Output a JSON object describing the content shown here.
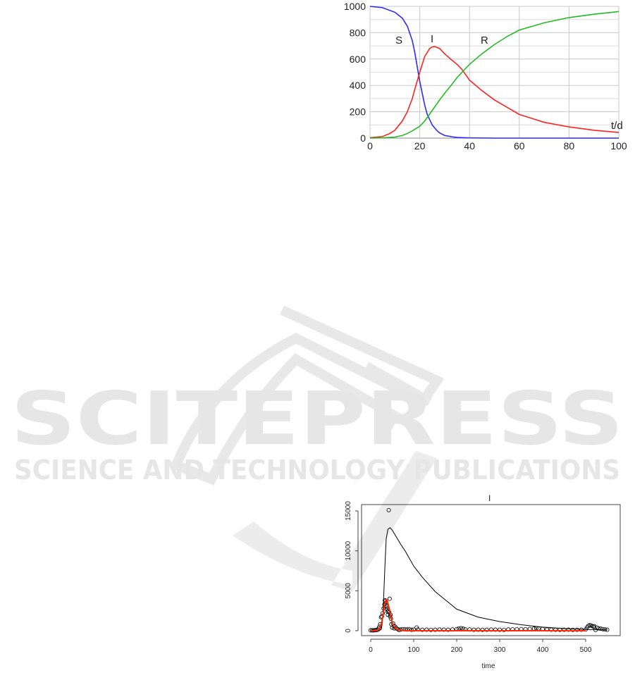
{
  "watermark": {
    "title": "SCITEPRESS",
    "subtitle": "SCIENCE AND TECHNOLOGY PUBLICATIONS"
  },
  "chart_data": [
    {
      "type": "line",
      "xlabel": "t/d",
      "ylabel": "",
      "xlim": [
        0,
        100
      ],
      "ylim": [
        0,
        1000
      ],
      "xticks": [
        "0",
        "20",
        "40",
        "60",
        "80",
        "100"
      ],
      "yticks": [
        "0",
        "200",
        "400",
        "600",
        "800",
        "1000"
      ],
      "grid": true,
      "series": [
        {
          "name": "S",
          "color": "#2a2aff",
          "x": [
            0,
            5,
            10,
            13,
            15,
            17,
            18,
            19,
            20,
            21,
            22,
            23,
            25,
            27,
            28,
            30,
            33,
            35,
            40,
            50,
            60,
            80,
            100
          ],
          "y": [
            1000,
            990,
            955,
            910,
            850,
            740,
            650,
            540,
            430,
            340,
            250,
            180,
            100,
            55,
            40,
            20,
            10,
            5,
            2,
            0,
            0,
            0,
            0
          ]
        },
        {
          "name": "I",
          "color": "#ff2020",
          "x": [
            0,
            5,
            8,
            10,
            13,
            15,
            17,
            18,
            20,
            22,
            24,
            25,
            26,
            28,
            30,
            33,
            35,
            37,
            40,
            45,
            50,
            55,
            60,
            70,
            80,
            90,
            100
          ],
          "y": [
            3,
            12,
            35,
            60,
            130,
            200,
            300,
            370,
            500,
            620,
            680,
            692,
            695,
            680,
            640,
            590,
            560,
            520,
            440,
            360,
            290,
            235,
            180,
            120,
            85,
            60,
            43
          ]
        },
        {
          "name": "R",
          "color": "#22bb22",
          "x": [
            0,
            5,
            10,
            13,
            15,
            17,
            20,
            22,
            25,
            28,
            30,
            33,
            35,
            38,
            40,
            45,
            50,
            55,
            60,
            70,
            80,
            90,
            100
          ],
          "y": [
            0,
            2,
            8,
            20,
            35,
            55,
            90,
            130,
            210,
            290,
            340,
            410,
            460,
            520,
            560,
            640,
            710,
            770,
            820,
            875,
            915,
            940,
            960
          ]
        }
      ]
    },
    {
      "type": "scatter",
      "title": "I",
      "xlabel": "time",
      "ylabel": "",
      "xlim": [
        0,
        550
      ],
      "ylim": [
        0,
        15000
      ],
      "xticks": [
        "0",
        "100",
        "200",
        "300",
        "400",
        "500"
      ],
      "yticks": [
        "0",
        "5000",
        "10000",
        "15000"
      ],
      "grid": false,
      "series": [
        {
          "kind": "points",
          "color": "#000000",
          "x": [
            0,
            3,
            6,
            9,
            12,
            15,
            18,
            20,
            22,
            24,
            26,
            28,
            30,
            32,
            33,
            34,
            35,
            36,
            37,
            38,
            39,
            40,
            41,
            42,
            43,
            44,
            45,
            46,
            47,
            48,
            50,
            52,
            54,
            55,
            57,
            60,
            63,
            66,
            70,
            75,
            80,
            85,
            90,
            95,
            100,
            107,
            110,
            120,
            130,
            140,
            150,
            160,
            170,
            180,
            190,
            200,
            205,
            210,
            215,
            220,
            230,
            240,
            250,
            260,
            270,
            280,
            290,
            300,
            310,
            320,
            330,
            340,
            350,
            360,
            370,
            380,
            385,
            390,
            400,
            410,
            420,
            430,
            440,
            450,
            460,
            470,
            480,
            490,
            500,
            503,
            506,
            509,
            512,
            515,
            518,
            520,
            523,
            526,
            530,
            535,
            540,
            545,
            550
          ],
          "y": [
            50,
            60,
            40,
            70,
            90,
            100,
            250,
            500,
            800,
            1700,
            1800,
            2200,
            2800,
            3300,
            3800,
            3700,
            3500,
            3200,
            3000,
            2700,
            2400,
            2000,
            2500,
            15100,
            2300,
            4000,
            1800,
            2000,
            1500,
            800,
            400,
            900,
            600,
            300,
            500,
            300,
            200,
            100,
            150,
            200,
            180,
            150,
            170,
            120,
            140,
            400,
            150,
            120,
            130,
            110,
            120,
            140,
            130,
            120,
            150,
            200,
            280,
            320,
            250,
            180,
            150,
            120,
            130,
            110,
            120,
            140,
            130,
            120,
            110,
            150,
            170,
            180,
            200,
            190,
            220,
            260,
            300,
            280,
            200,
            150,
            130,
            120,
            110,
            120,
            130,
            110,
            120,
            130,
            150,
            400,
            600,
            700,
            650,
            600,
            500,
            550,
            100,
            400,
            300,
            250,
            200,
            150,
            120
          ]
        },
        {
          "kind": "line",
          "color": "#000000",
          "x": [
            0,
            20,
            25,
            28,
            30,
            33,
            36,
            40,
            45,
            50,
            60,
            70,
            80,
            100,
            120,
            150,
            200,
            250,
            300,
            350,
            400,
            450,
            500,
            550
          ],
          "y": [
            0,
            0,
            200,
            1500,
            4000,
            8000,
            11500,
            12700,
            12900,
            12600,
            11700,
            10800,
            10000,
            8100,
            6700,
            4900,
            2700,
            1700,
            1150,
            750,
            450,
            280,
            150,
            100
          ]
        },
        {
          "kind": "line",
          "color": "#ff2a00",
          "x": [
            0,
            15,
            20,
            25,
            28,
            30,
            33,
            35,
            37,
            39,
            42,
            45,
            48,
            50,
            55,
            60,
            65,
            70,
            80,
            100,
            200,
            300,
            400,
            500
          ],
          "y": [
            0,
            30,
            200,
            900,
            1700,
            2500,
            3500,
            3800,
            3900,
            3700,
            3000,
            2300,
            1500,
            1000,
            500,
            200,
            90,
            40,
            10,
            0,
            0,
            0,
            0,
            0
          ]
        }
      ]
    }
  ]
}
